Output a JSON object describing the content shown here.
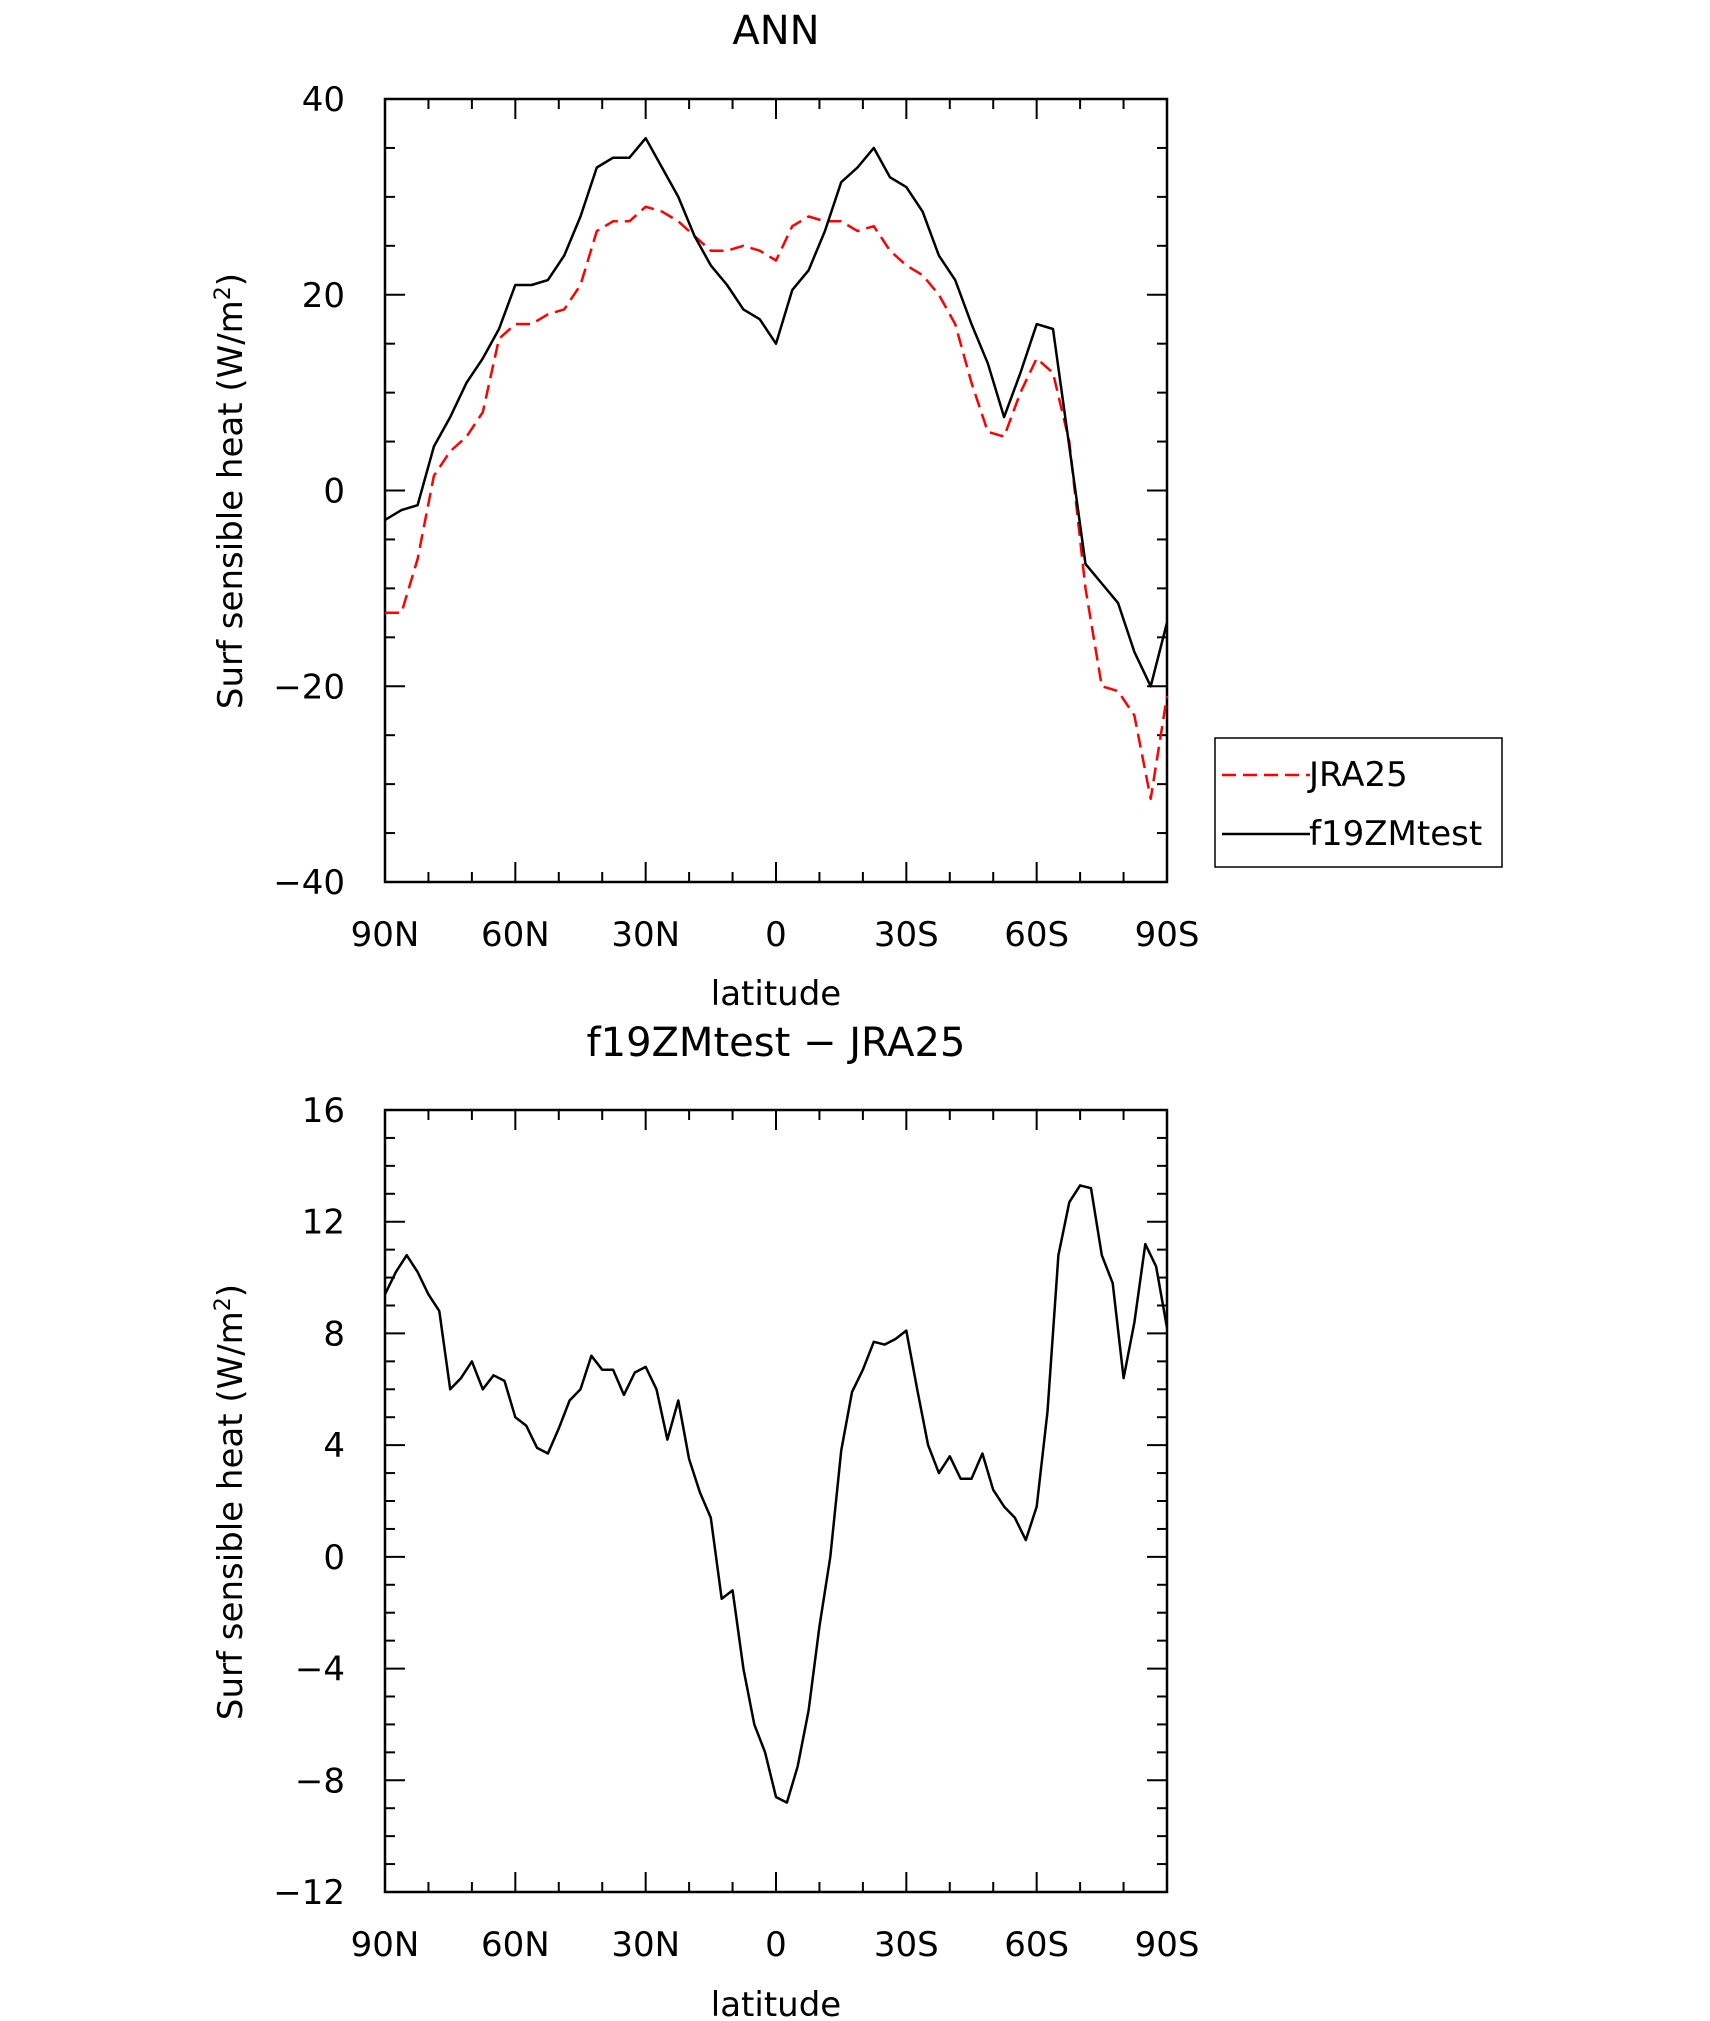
{
  "chart_data": [
    {
      "type": "line",
      "title": "ANN",
      "xlabel": "latitude",
      "ylabel_main": "Surf sensible heat (W/m",
      "ylabel_sup": "2",
      "ylabel_close": ")",
      "ylim": [
        -40,
        40
      ],
      "xlim": [
        90,
        -90
      ],
      "xticks": [
        {
          "value": 90,
          "label": "90N"
        },
        {
          "value": 60,
          "label": "60N"
        },
        {
          "value": 30,
          "label": "30N"
        },
        {
          "value": 0,
          "label": "0"
        },
        {
          "value": -30,
          "label": "30S"
        },
        {
          "value": -60,
          "label": "60S"
        },
        {
          "value": -90,
          "label": "90S"
        }
      ],
      "yticks": [
        {
          "value": 40,
          "label": "40"
        },
        {
          "value": 20,
          "label": "20"
        },
        {
          "value": 0,
          "label": "0"
        },
        {
          "value": -20,
          "label": "−20"
        },
        {
          "value": -40,
          "label": "−40"
        }
      ],
      "legend": {
        "position": "right"
      },
      "series": [
        {
          "name": "JRA25",
          "color": "#ff0000",
          "dash": "dashed",
          "x": [
            90,
            86.2,
            82.5,
            78.75,
            75,
            71.25,
            67.5,
            63.75,
            60,
            56.25,
            52.5,
            48.75,
            45,
            41.25,
            37.5,
            33.75,
            30,
            26.25,
            22.5,
            18.75,
            15,
            11.25,
            7.5,
            3.75,
            0,
            -3.75,
            -7.5,
            -11.25,
            -15,
            -18.75,
            -22.5,
            -26.25,
            -30,
            -33.75,
            -37.5,
            -41.25,
            -45,
            -48.75,
            -52.5,
            -56.25,
            -60,
            -63.75,
            -67.5,
            -71.25,
            -75,
            -78.75,
            -82.5,
            -86.25,
            -90
          ],
          "y": [
            -12.5,
            -12.5,
            -7,
            1.5,
            4,
            5.5,
            8,
            15.5,
            17,
            17,
            18,
            18.5,
            21,
            26.5,
            27.5,
            27.5,
            29,
            28.5,
            27.5,
            26,
            24.5,
            24.5,
            25,
            24.5,
            23.5,
            27,
            28,
            27.5,
            27.5,
            26.5,
            27,
            24.5,
            23,
            22,
            20,
            17,
            11,
            6,
            5.5,
            10,
            13.5,
            12,
            5,
            -10,
            -20,
            -20.5,
            -23,
            -31.5,
            -21
          ]
        },
        {
          "name": "f19ZMtest",
          "color": "#000000",
          "dash": "solid",
          "x": [
            90,
            86.2,
            82.5,
            78.75,
            75,
            71.25,
            67.5,
            63.75,
            60,
            56.25,
            52.5,
            48.75,
            45,
            41.25,
            37.5,
            33.75,
            30,
            26.25,
            22.5,
            18.75,
            15,
            11.25,
            7.5,
            3.75,
            0,
            -3.75,
            -7.5,
            -11.25,
            -15,
            -18.75,
            -22.5,
            -26.25,
            -30,
            -33.75,
            -37.5,
            -41.25,
            -45,
            -48.75,
            -52.5,
            -56.25,
            -60,
            -63.75,
            -67.5,
            -71.25,
            -75,
            -78.75,
            -82.5,
            -86.25,
            -90
          ],
          "y": [
            -3,
            -2,
            -1.5,
            4.5,
            7.5,
            11,
            13.5,
            16.5,
            21,
            21,
            21.5,
            24,
            28,
            33,
            34,
            34,
            36,
            33,
            30,
            26,
            23,
            21,
            18.5,
            17.5,
            15,
            20.5,
            22.5,
            26.5,
            31.5,
            33,
            35,
            32,
            31,
            28.5,
            24,
            21.5,
            17,
            13,
            7.5,
            12,
            17,
            16.5,
            4.5,
            -7.5,
            -9.5,
            -11.5,
            -16.5,
            -20,
            -13.5
          ]
        }
      ]
    },
    {
      "type": "line",
      "title": "f19ZMtest − JRA25",
      "xlabel": "latitude",
      "ylabel_main": "Surf sensible heat (W/m",
      "ylabel_sup": "2",
      "ylabel_close": ")",
      "ylim": [
        -12,
        16
      ],
      "xlim": [
        90,
        -90
      ],
      "xticks": [
        {
          "value": 90,
          "label": "90N"
        },
        {
          "value": 60,
          "label": "60N"
        },
        {
          "value": 30,
          "label": "30N"
        },
        {
          "value": 0,
          "label": "0"
        },
        {
          "value": -30,
          "label": "30S"
        },
        {
          "value": -60,
          "label": "60S"
        },
        {
          "value": -90,
          "label": "90S"
        }
      ],
      "yticks": [
        {
          "value": 16,
          "label": "16"
        },
        {
          "value": 12,
          "label": "12"
        },
        {
          "value": 8,
          "label": "8"
        },
        {
          "value": 4,
          "label": "4"
        },
        {
          "value": 0,
          "label": "0"
        },
        {
          "value": -4,
          "label": "−4"
        },
        {
          "value": -8,
          "label": "−8"
        },
        {
          "value": -12,
          "label": "−12"
        }
      ],
      "series": [
        {
          "color": "#000000",
          "dash": "solid",
          "x": [
            90,
            87.5,
            85,
            82.5,
            80,
            77.5,
            75,
            72.5,
            70,
            67.5,
            65,
            62.5,
            60,
            57.5,
            55,
            52.5,
            50,
            47.5,
            45,
            42.5,
            40,
            37.5,
            35,
            32.5,
            30,
            27.5,
            25,
            22.5,
            20,
            17.5,
            15,
            12.5,
            10,
            7.5,
            5,
            2.5,
            0,
            -2.5,
            -5,
            -7.5,
            -10,
            -12.5,
            -15,
            -17.5,
            -20,
            -22.5,
            -25,
            -27.5,
            -30,
            -32.5,
            -35,
            -37.5,
            -40,
            -42.5,
            -45,
            -47.5,
            -50,
            -52.5,
            -55,
            -57.5,
            -60,
            -62.5,
            -65,
            -67.5,
            -70,
            -72.5,
            -75,
            -77.5,
            -80,
            -82.5,
            -85,
            -87.5,
            -90
          ],
          "y": [
            9.4,
            10.2,
            10.8,
            10.2,
            9.4,
            8.8,
            6.0,
            6.4,
            7.0,
            6.0,
            6.5,
            6.3,
            5.0,
            4.7,
            3.9,
            3.7,
            4.6,
            5.6,
            6.0,
            7.2,
            6.7,
            6.7,
            5.8,
            6.6,
            6.8,
            6.0,
            4.2,
            5.6,
            3.5,
            2.3,
            1.4,
            -1.5,
            -1.2,
            -4.0,
            -6.0,
            -7.0,
            -8.6,
            -8.8,
            -7.5,
            -5.5,
            -2.5,
            0.0,
            3.8,
            5.9,
            6.7,
            7.7,
            7.6,
            7.8,
            8.1,
            6.0,
            4.0,
            3.0,
            3.6,
            2.8,
            2.8,
            3.7,
            2.4,
            1.8,
            1.4,
            0.6,
            1.8,
            5.2,
            10.8,
            12.7,
            13.3,
            13.2,
            10.8,
            9.8,
            6.4,
            8.4,
            11.2,
            10.4,
            8.2
          ]
        }
      ]
    }
  ]
}
